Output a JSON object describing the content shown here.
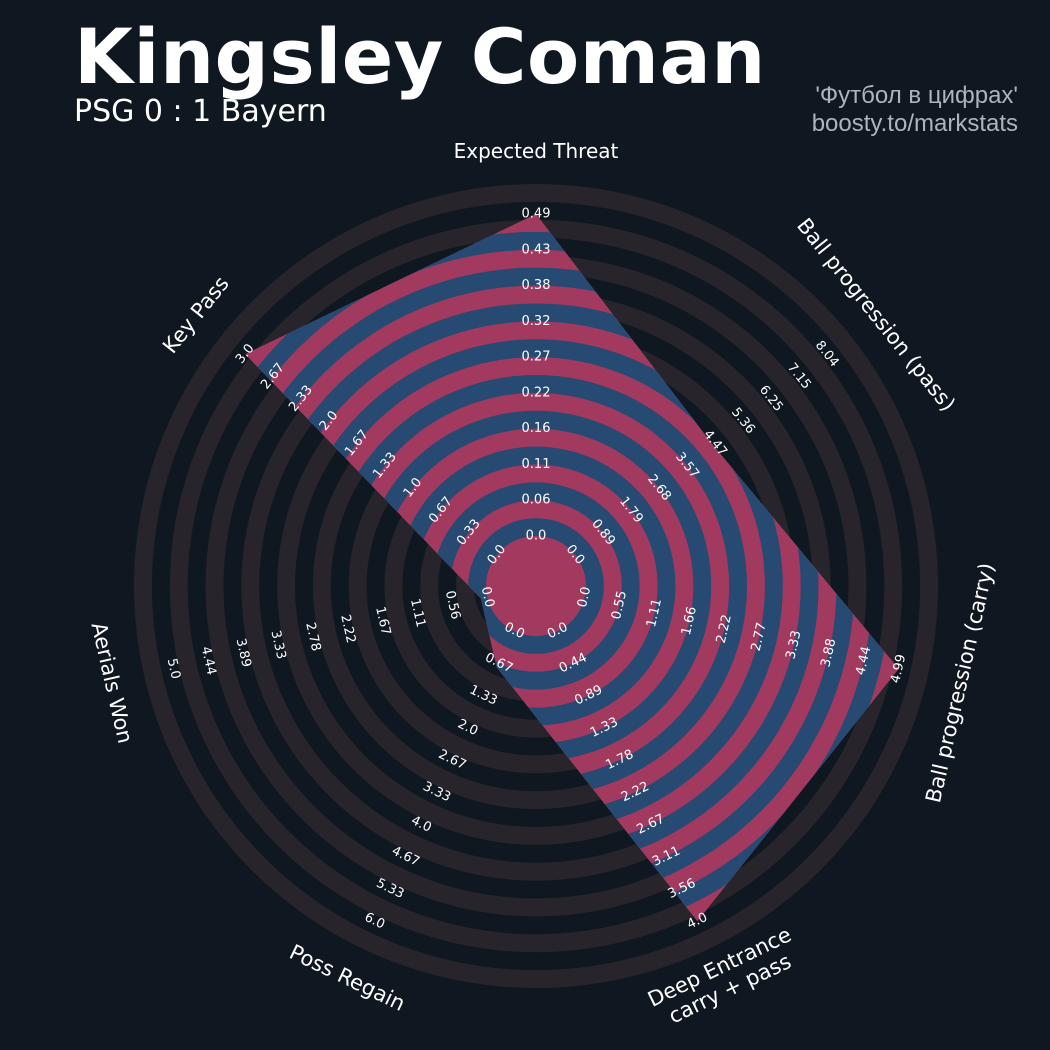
{
  "header": {
    "title": "Kingsley Coman",
    "subtitle": "PSG 0 : 1 Bayern",
    "credit_line1": "'Футбол в цифрах'",
    "credit_line2": "boosty.to/markstats"
  },
  "colors": {
    "background": "#0f1820",
    "ring_dark": "#28242b",
    "ring_light": "#0f1820",
    "fill_blue": "#264a72",
    "fill_pink": "#a23a60",
    "text": "#ffffff",
    "credit": "#aeb4b9"
  },
  "chart_data": {
    "type": "radar",
    "title": "Kingsley Coman",
    "subtitle": "PSG 0 : 1 Bayern",
    "params": [
      {
        "label": "Expected Threat",
        "ticks": [
          "0.0",
          "0.06",
          "0.11",
          "0.16",
          "0.22",
          "0.27",
          "0.32",
          "0.38",
          "0.43",
          "0.49"
        ],
        "min": 0.0,
        "max": 0.49,
        "value": 0.49
      },
      {
        "label": "Ball progression (pass)",
        "ticks": [
          "0.0",
          "0.89",
          "1.79",
          "2.68",
          "3.57",
          "4.47",
          "5.36",
          "6.25",
          "7.15",
          "8.04"
        ],
        "min": 0.0,
        "max": 8.04,
        "value": 4.4
      },
      {
        "label": "Ball progression (carry)",
        "ticks": [
          "0.0",
          "0.55",
          "1.11",
          "1.66",
          "2.22",
          "2.77",
          "3.33",
          "3.88",
          "4.44",
          "4.99"
        ],
        "min": 0.0,
        "max": 4.99,
        "value": 4.99
      },
      {
        "label": "Deep Entrance\ncarry + pass",
        "ticks": [
          "0.0",
          "0.44",
          "0.89",
          "1.33",
          "1.78",
          "2.22",
          "2.67",
          "3.11",
          "3.56",
          "4.0"
        ],
        "min": 0.0,
        "max": 4.0,
        "value": 4.0
      },
      {
        "label": "Poss Regain",
        "ticks": [
          "0.0",
          "0.67",
          "1.33",
          "2.0",
          "2.67",
          "3.33",
          "4.0",
          "4.67",
          "5.33",
          "6.0"
        ],
        "min": 0.0,
        "max": 6.0,
        "value": 0.75
      },
      {
        "label": "Aerials Won",
        "ticks": [
          "0.0",
          "0.56",
          "1.11",
          "1.67",
          "2.22",
          "2.78",
          "3.33",
          "3.89",
          "4.44",
          "5.0"
        ],
        "min": 0.0,
        "max": 5.0,
        "value": 0.1
      },
      {
        "label": "Key Pass",
        "ticks": [
          "0.0",
          "0.33",
          "0.67",
          "1.0",
          "1.33",
          "1.67",
          "2.0",
          "2.33",
          "2.67",
          "3.0"
        ],
        "min": 0.0,
        "max": 3.0,
        "value": 3.0
      }
    ]
  }
}
